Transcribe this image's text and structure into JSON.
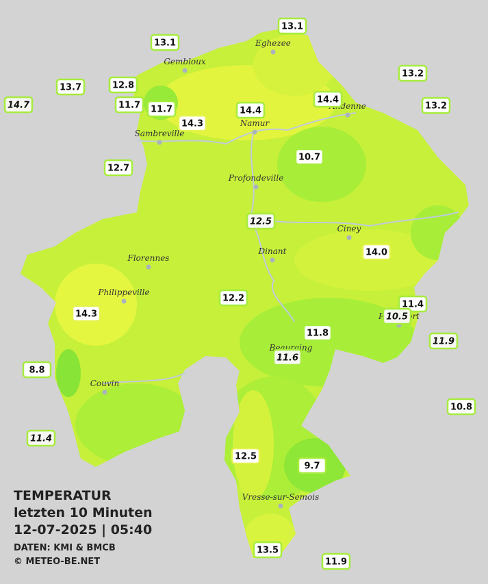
{
  "title": {
    "lines": [
      "TEMPERATUR",
      "letzten 10 Minuten",
      "12-07-2025  |  05:40"
    ],
    "source": "DATEN: KMI & BMCB",
    "copyright": "© METEO-BE.NET"
  },
  "towns": [
    "Eghezee",
    "Gembloux",
    "Andenne",
    "Namur",
    "Sambreville",
    "Profondeville",
    "Ciney",
    "Dinant",
    "Florennes",
    "Philippeville",
    "Rochefort",
    "Beauraing",
    "Couvin",
    "Vresse-sur-Semois"
  ],
  "readings": [
    "13.1",
    "13.1",
    "13.2",
    "13.7",
    "12.8",
    "14.7",
    "11.7",
    "11.7",
    "14.4",
    "14.4",
    "13.2",
    "14.3",
    "10.7",
    "12.7",
    "12.5",
    "14.0",
    "12.2",
    "11.4",
    "10.5",
    "14.3",
    "11.8",
    "11.9",
    "11.6",
    "8.8",
    "10.8",
    "11.4",
    "12.5",
    "9.7",
    "13.5",
    "11.9"
  ]
}
